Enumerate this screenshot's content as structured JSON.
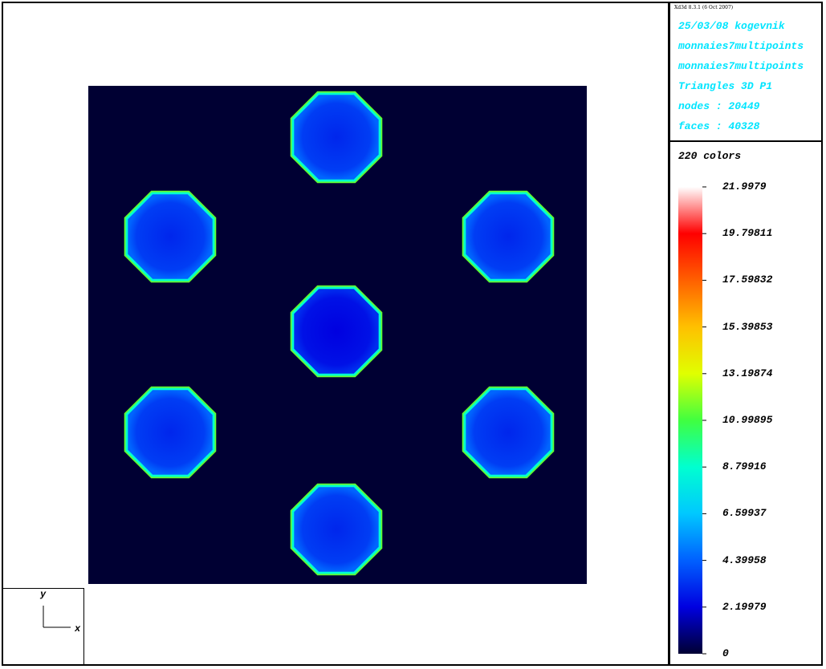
{
  "viewer": {
    "version_text": "Xd3d 8.3.1 (6 Oct 2007)",
    "info_lines": [
      "25/03/08 kogevnik",
      "monnaies7multipoints",
      "monnaies7multipoints",
      "Triangles 3D P1",
      "nodes : 20449",
      "faces : 40328"
    ],
    "colors_label": "220 colors",
    "axes": {
      "y_label": "y",
      "x_label": "x"
    },
    "info_color": "#00e5ff"
  },
  "chart_data": {
    "type": "heatmap",
    "title": "",
    "colorbar": {
      "n_colors": 220,
      "range": [
        0,
        21.9979
      ],
      "tick_labels": [
        "21.9979",
        "19.79811",
        "17.59832",
        "15.39853",
        "13.19874",
        "10.99895",
        "8.79916",
        "6.59937",
        "4.39958",
        "2.19979",
        "0"
      ],
      "tick_values": [
        21.9979,
        19.79811,
        17.59832,
        15.39853,
        13.19874,
        10.99895,
        8.79916,
        6.59937,
        4.39958,
        2.19979,
        0
      ],
      "colormap": [
        "#000033",
        "#0000e0",
        "#0060ff",
        "#00c8ff",
        "#00ffd0",
        "#40ff40",
        "#e0ff00",
        "#ffc000",
        "#ff6000",
        "#ff0000",
        "#ffffff"
      ]
    },
    "background_value": 0,
    "coins": [
      {
        "name": "top",
        "interior_value": 3.6,
        "edge_value": 8.8
      },
      {
        "name": "upper-left",
        "interior_value": 3.6,
        "edge_value": 8.8
      },
      {
        "name": "upper-right",
        "interior_value": 3.6,
        "edge_value": 8.8
      },
      {
        "name": "center",
        "interior_value": 2.6,
        "edge_value": 8.8
      },
      {
        "name": "lower-left",
        "interior_value": 3.6,
        "edge_value": 8.8
      },
      {
        "name": "lower-right",
        "interior_value": 3.6,
        "edge_value": 8.8
      },
      {
        "name": "bottom",
        "interior_value": 3.6,
        "edge_value": 8.8
      }
    ]
  }
}
